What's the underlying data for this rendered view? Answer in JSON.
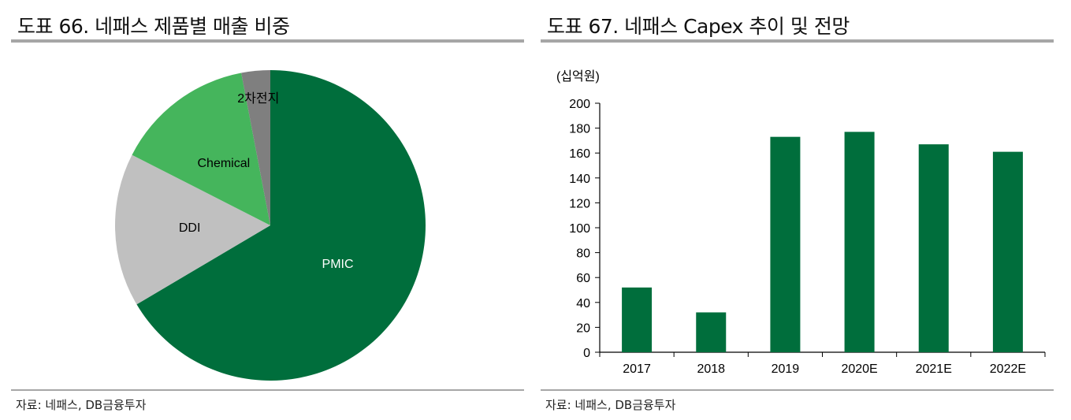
{
  "source": "자료: 네패스, DB금융투자",
  "left_panel": {
    "title": "도표 66. 네패스 제품별 매출 비중"
  },
  "right_panel": {
    "title": "도표 67. 네패스 Capex 추이 및 전망"
  },
  "chart_data": [
    {
      "type": "pie",
      "title": "도표 66. 네패스 제품별 매출 비중",
      "slices": [
        {
          "label": "PMIC",
          "value": 66.5,
          "color": "#006e3c"
        },
        {
          "label": "DDI",
          "value": 16.0,
          "color": "#c0c0c0"
        },
        {
          "label": "Chemical",
          "value": 14.5,
          "color": "#45b55c"
        },
        {
          "label": "2차전지",
          "value": 3.0,
          "color": "#7f7f7f"
        }
      ]
    },
    {
      "type": "bar",
      "title": "도표 67. 네패스 Capex 추이 및 전망",
      "unit_label": "(십억원)",
      "categories": [
        "2017",
        "2018",
        "2019",
        "2020E",
        "2021E",
        "2022E"
      ],
      "values": [
        52,
        32,
        173,
        177,
        167,
        161
      ],
      "ylim": [
        0,
        200
      ],
      "yticks": [
        "0",
        "20",
        "40",
        "60",
        "80",
        "100",
        "120",
        "140",
        "160",
        "180",
        "200"
      ],
      "grid": false,
      "color": "#006e3c"
    }
  ]
}
